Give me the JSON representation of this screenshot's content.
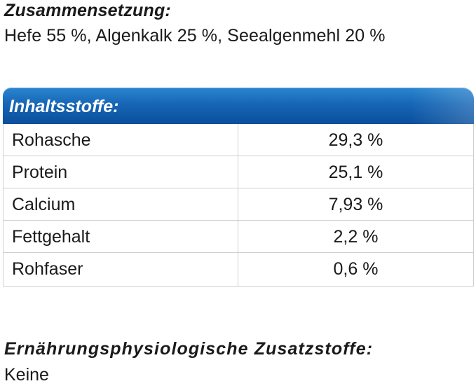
{
  "composition": {
    "heading": "Zusammensetzung:",
    "text": "Hefe 55 %, Algenkalk 25 %, Seealgenmehl 20 %"
  },
  "ingredients_table": {
    "title": "Inhaltsstoffe:",
    "header_color": "#1766b6",
    "rows": [
      {
        "name": "Rohasche",
        "value": "29,3 %"
      },
      {
        "name": "Protein",
        "value": "25,1 %"
      },
      {
        "name": "Calcium",
        "value": "7,93 %"
      },
      {
        "name": "Fettgehalt",
        "value": "2,2 %"
      },
      {
        "name": "Rohfaser",
        "value": "0,6 %"
      }
    ]
  },
  "additives": {
    "heading": "Ernährungsphysiologische Zusatzstoffe:",
    "text": "Keine"
  }
}
